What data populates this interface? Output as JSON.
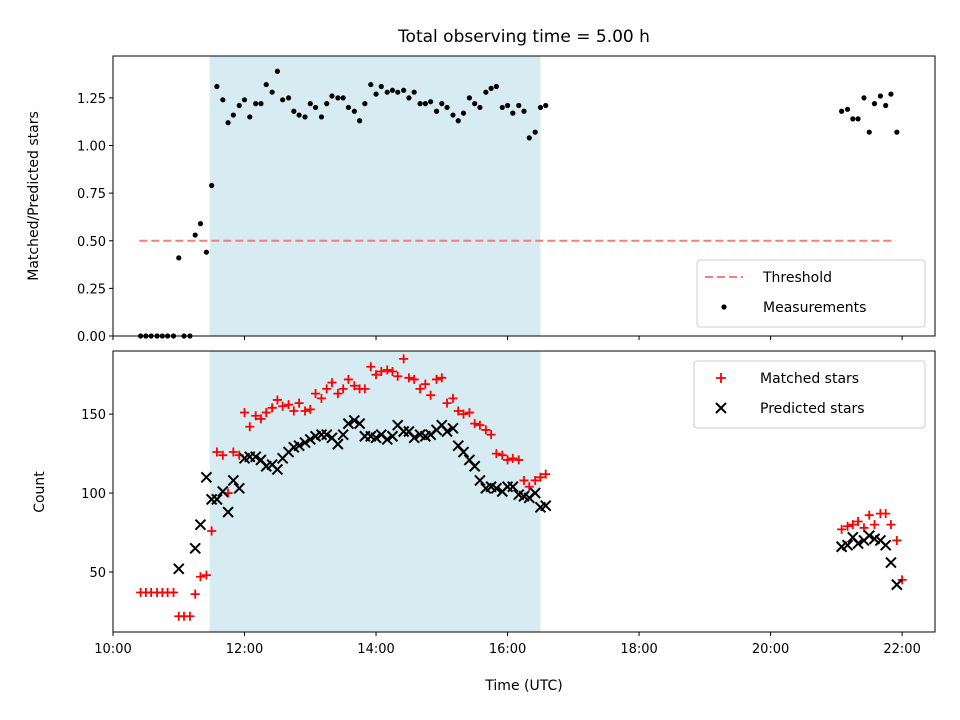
{
  "chart_data": [
    {
      "type": "scatter",
      "title": "Total observing time = 5.00 h",
      "ylabel": "Matched/Predicted stars",
      "xlabel": "",
      "xlim": [
        10.0,
        22.5
      ],
      "ylim": [
        0.0,
        1.47
      ],
      "yticks": [
        0.0,
        0.25,
        0.5,
        0.75,
        1.0,
        1.25
      ],
      "ytick_labels": [
        "0.00",
        "0.25",
        "0.50",
        "0.75",
        "1.00",
        "1.25"
      ],
      "grid": false,
      "legend_position": "lower right",
      "shaded_span": [
        11.47,
        16.5
      ],
      "series": [
        {
          "name": "Threshold",
          "kind": "dashed-line",
          "color": "#f08080",
          "x": [
            10.4,
            21.9
          ],
          "y": [
            0.5,
            0.5
          ]
        },
        {
          "name": "Measurements",
          "kind": "dot",
          "color": "#000000",
          "points": [
            [
              10.42,
              0.0
            ],
            [
              10.5,
              0.0
            ],
            [
              10.58,
              0.0
            ],
            [
              10.67,
              0.0
            ],
            [
              10.75,
              0.0
            ],
            [
              10.83,
              0.0
            ],
            [
              10.92,
              0.0
            ],
            [
              11.0,
              0.41
            ],
            [
              11.08,
              0.0
            ],
            [
              11.17,
              0.0
            ],
            [
              11.25,
              0.53
            ],
            [
              11.33,
              0.59
            ],
            [
              11.42,
              0.44
            ],
            [
              11.5,
              0.79
            ],
            [
              11.58,
              1.31
            ],
            [
              11.67,
              1.24
            ],
            [
              11.75,
              1.12
            ],
            [
              11.83,
              1.16
            ],
            [
              11.92,
              1.21
            ],
            [
              12.0,
              1.24
            ],
            [
              12.08,
              1.15
            ],
            [
              12.17,
              1.22
            ],
            [
              12.25,
              1.22
            ],
            [
              12.33,
              1.32
            ],
            [
              12.42,
              1.28
            ],
            [
              12.5,
              1.39
            ],
            [
              12.58,
              1.24
            ],
            [
              12.67,
              1.25
            ],
            [
              12.75,
              1.18
            ],
            [
              12.83,
              1.16
            ],
            [
              12.92,
              1.15
            ],
            [
              13.0,
              1.22
            ],
            [
              13.08,
              1.2
            ],
            [
              13.17,
              1.15
            ],
            [
              13.25,
              1.22
            ],
            [
              13.33,
              1.26
            ],
            [
              13.42,
              1.25
            ],
            [
              13.5,
              1.25
            ],
            [
              13.58,
              1.2
            ],
            [
              13.67,
              1.18
            ],
            [
              13.75,
              1.13
            ],
            [
              13.83,
              1.22
            ],
            [
              13.92,
              1.32
            ],
            [
              14.0,
              1.27
            ],
            [
              14.08,
              1.31
            ],
            [
              14.17,
              1.28
            ],
            [
              14.25,
              1.29
            ],
            [
              14.33,
              1.28
            ],
            [
              14.42,
              1.29
            ],
            [
              14.5,
              1.25
            ],
            [
              14.58,
              1.28
            ],
            [
              14.67,
              1.22
            ],
            [
              14.75,
              1.22
            ],
            [
              14.83,
              1.23
            ],
            [
              14.92,
              1.18
            ],
            [
              15.0,
              1.22
            ],
            [
              15.08,
              1.2
            ],
            [
              15.17,
              1.16
            ],
            [
              15.25,
              1.13
            ],
            [
              15.33,
              1.17
            ],
            [
              15.42,
              1.25
            ],
            [
              15.5,
              1.22
            ],
            [
              15.58,
              1.2
            ],
            [
              15.67,
              1.28
            ],
            [
              15.75,
              1.3
            ],
            [
              15.83,
              1.31
            ],
            [
              15.92,
              1.2
            ],
            [
              16.0,
              1.21
            ],
            [
              16.08,
              1.17
            ],
            [
              16.17,
              1.21
            ],
            [
              16.25,
              1.18
            ],
            [
              16.33,
              1.04
            ],
            [
              16.42,
              1.07
            ],
            [
              16.5,
              1.2
            ],
            [
              16.58,
              1.21
            ],
            [
              21.08,
              1.18
            ],
            [
              21.17,
              1.19
            ],
            [
              21.25,
              1.14
            ],
            [
              21.33,
              1.14
            ],
            [
              21.42,
              1.25
            ],
            [
              21.5,
              1.07
            ],
            [
              21.58,
              1.22
            ],
            [
              21.67,
              1.26
            ],
            [
              21.75,
              1.21
            ],
            [
              21.83,
              1.27
            ],
            [
              21.92,
              1.07
            ]
          ]
        }
      ]
    },
    {
      "type": "scatter",
      "title": "",
      "xlabel": "Time (UTC)",
      "ylabel": "Count",
      "xlim": [
        10.0,
        22.5
      ],
      "ylim": [
        12,
        190
      ],
      "xticks": [
        10,
        12,
        14,
        16,
        18,
        20,
        22
      ],
      "xtick_labels": [
        "10:00",
        "12:00",
        "14:00",
        "16:00",
        "18:00",
        "20:00",
        "22:00"
      ],
      "yticks": [
        50,
        100,
        150
      ],
      "ytick_labels": [
        "50",
        "100",
        "150"
      ],
      "grid": false,
      "legend_position": "upper right",
      "shaded_span": [
        11.47,
        16.5
      ],
      "series": [
        {
          "name": "Matched stars",
          "kind": "plus",
          "color": "#ff0000",
          "points": [
            [
              10.42,
              37
            ],
            [
              10.5,
              37
            ],
            [
              10.58,
              37
            ],
            [
              10.67,
              37
            ],
            [
              10.75,
              37
            ],
            [
              10.83,
              37
            ],
            [
              10.92,
              37
            ],
            [
              11.0,
              22
            ],
            [
              11.08,
              22
            ],
            [
              11.17,
              22
            ],
            [
              11.25,
              36
            ],
            [
              11.33,
              47
            ],
            [
              11.42,
              48
            ],
            [
              11.5,
              76
            ],
            [
              11.58,
              126
            ],
            [
              11.67,
              124
            ],
            [
              11.75,
              100
            ],
            [
              11.83,
              126
            ],
            [
              11.92,
              124
            ],
            [
              12.0,
              151
            ],
            [
              12.08,
              142
            ],
            [
              12.17,
              149
            ],
            [
              12.25,
              147
            ],
            [
              12.33,
              151
            ],
            [
              12.42,
              154
            ],
            [
              12.5,
              159
            ],
            [
              12.58,
              155
            ],
            [
              12.67,
              156
            ],
            [
              12.75,
              152
            ],
            [
              12.83,
              157
            ],
            [
              12.92,
              152
            ],
            [
              13.0,
              153
            ],
            [
              13.08,
              163
            ],
            [
              13.17,
              160
            ],
            [
              13.25,
              166
            ],
            [
              13.33,
              170
            ],
            [
              13.42,
              163
            ],
            [
              13.5,
              166
            ],
            [
              13.58,
              172
            ],
            [
              13.67,
              168
            ],
            [
              13.75,
              166
            ],
            [
              13.83,
              166
            ],
            [
              13.92,
              180
            ],
            [
              14.0,
              175
            ],
            [
              14.08,
              177
            ],
            [
              14.17,
              178
            ],
            [
              14.25,
              177
            ],
            [
              14.33,
              174
            ],
            [
              14.42,
              185
            ],
            [
              14.5,
              173
            ],
            [
              14.58,
              172
            ],
            [
              14.67,
              166
            ],
            [
              14.75,
              169
            ],
            [
              14.83,
              162
            ],
            [
              14.92,
              172
            ],
            [
              15.0,
              173
            ],
            [
              15.08,
              157
            ],
            [
              15.17,
              160
            ],
            [
              15.25,
              152
            ],
            [
              15.33,
              150
            ],
            [
              15.42,
              151
            ],
            [
              15.5,
              144
            ],
            [
              15.58,
              143
            ],
            [
              15.67,
              140
            ],
            [
              15.75,
              137
            ],
            [
              15.83,
              125
            ],
            [
              15.92,
              124
            ],
            [
              16.0,
              121
            ],
            [
              16.08,
              122
            ],
            [
              16.17,
              121
            ],
            [
              16.25,
              108
            ],
            [
              16.33,
              104
            ],
            [
              16.42,
              108
            ],
            [
              16.5,
              110
            ],
            [
              16.58,
              112
            ],
            [
              21.08,
              77
            ],
            [
              21.17,
              79
            ],
            [
              21.25,
              80
            ],
            [
              21.33,
              82
            ],
            [
              21.42,
              78
            ],
            [
              21.5,
              86
            ],
            [
              21.58,
              80
            ],
            [
              21.67,
              87
            ],
            [
              21.75,
              87
            ],
            [
              21.83,
              80
            ],
            [
              21.92,
              70
            ],
            [
              22.0,
              45
            ]
          ]
        },
        {
          "name": "Predicted stars",
          "kind": "cross",
          "color": "#000000",
          "points": [
            [
              11.0,
              52
            ],
            [
              11.25,
              65
            ],
            [
              11.33,
              80
            ],
            [
              11.42,
              110
            ],
            [
              11.5,
              96
            ],
            [
              11.58,
              96
            ],
            [
              11.67,
              101
            ],
            [
              11.75,
              88
            ],
            [
              11.83,
              108
            ],
            [
              11.92,
              103
            ],
            [
              12.0,
              122
            ],
            [
              12.08,
              123
            ],
            [
              12.17,
              123
            ],
            [
              12.25,
              121
            ],
            [
              12.33,
              117
            ],
            [
              12.42,
              118
            ],
            [
              12.5,
              115
            ],
            [
              12.58,
              122
            ],
            [
              12.67,
              126
            ],
            [
              12.75,
              129
            ],
            [
              12.83,
              130
            ],
            [
              12.92,
              132
            ],
            [
              13.0,
              134
            ],
            [
              13.08,
              136
            ],
            [
              13.17,
              137
            ],
            [
              13.25,
              137
            ],
            [
              13.33,
              135
            ],
            [
              13.42,
              131
            ],
            [
              13.5,
              137
            ],
            [
              13.58,
              144
            ],
            [
              13.67,
              146
            ],
            [
              13.75,
              144
            ],
            [
              13.83,
              136
            ],
            [
              13.92,
              136
            ],
            [
              14.0,
              135
            ],
            [
              14.08,
              137
            ],
            [
              14.17,
              134
            ],
            [
              14.25,
              136
            ],
            [
              14.33,
              143
            ],
            [
              14.42,
              139
            ],
            [
              14.5,
              139
            ],
            [
              14.58,
              135
            ],
            [
              14.67,
              137
            ],
            [
              14.75,
              136
            ],
            [
              14.83,
              137
            ],
            [
              14.92,
              140
            ],
            [
              15.0,
              143
            ],
            [
              15.08,
              139
            ],
            [
              15.17,
              141
            ],
            [
              15.25,
              130
            ],
            [
              15.33,
              126
            ],
            [
              15.42,
              121
            ],
            [
              15.5,
              117
            ],
            [
              15.58,
              108
            ],
            [
              15.67,
              103
            ],
            [
              15.75,
              104
            ],
            [
              15.83,
              103
            ],
            [
              15.92,
              101
            ],
            [
              16.0,
              104
            ],
            [
              16.08,
              104
            ],
            [
              16.17,
              99
            ],
            [
              16.25,
              98
            ],
            [
              16.33,
              97
            ],
            [
              16.42,
              100
            ],
            [
              16.5,
              91
            ],
            [
              16.58,
              92
            ],
            [
              21.08,
              66
            ],
            [
              21.17,
              67
            ],
            [
              21.25,
              72
            ],
            [
              21.33,
              68
            ],
            [
              21.42,
              70
            ],
            [
              21.5,
              73
            ],
            [
              21.58,
              71
            ],
            [
              21.67,
              70
            ],
            [
              21.75,
              67
            ],
            [
              21.83,
              56
            ],
            [
              21.92,
              42
            ]
          ]
        }
      ]
    }
  ]
}
